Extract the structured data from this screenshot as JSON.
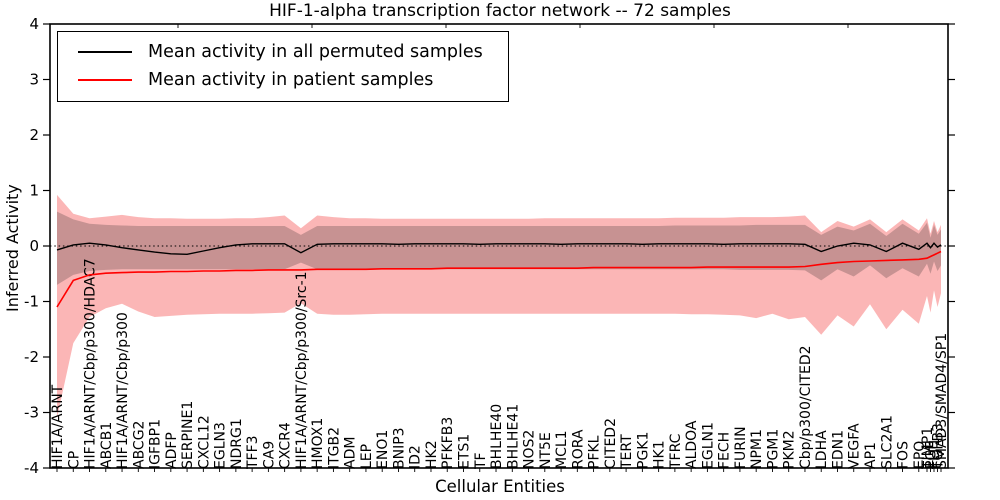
{
  "chart_data": {
    "type": "line",
    "title": "HIF-1-alpha transcription factor network -- 72 samples",
    "xlabel": "Cellular Entities",
    "ylabel": "Inferred Activity",
    "ylim": [
      -4,
      4
    ],
    "yticks": [
      "4",
      "3",
      "2",
      "1",
      "0",
      "-1",
      "-2",
      "-3",
      "-4"
    ],
    "ytick_values": [
      4,
      3,
      2,
      1,
      0,
      -1,
      -2,
      -3,
      -4
    ],
    "grid": false,
    "zero_line": {
      "style": "dotted",
      "color": "#000000",
      "y": 0
    },
    "legend": {
      "position": "upper left",
      "items": [
        {
          "label": "Mean activity in all permuted samples",
          "color": "#000000"
        },
        {
          "label": "Mean activity in patient samples",
          "color": "#ff0000"
        }
      ]
    },
    "categories": [
      "HIF1A/ARNT",
      "CP",
      "HIF1A/ARNT/Cbp/p300/HDAC7",
      "ABCB1",
      "HIF1A/ARNT/Cbp/p300",
      "ABCG2",
      "IGFBP1",
      "ADFP",
      "SERPINE1",
      "CXCL12",
      "EGLN3",
      "NDRG1",
      "TFF3",
      "CA9",
      "CXCR4",
      "HIF1A/ARNT/Cbp/p300/Src-1",
      "HMOX1",
      "ITGB2",
      "ADM",
      "LEP",
      "ENO1",
      "BNIP3",
      "ID2",
      "HK2",
      "PFKFB3",
      "ETS1",
      "TF",
      "BHLHE40",
      "BHLHE41",
      "NOS2",
      "NT5E",
      "MCL1",
      "RORA",
      "PFKL",
      "CITED2",
      "TERT",
      "PGK1",
      "HK1",
      "TFRC",
      "ALDOA",
      "EGLN1",
      "FECH",
      "FURIN",
      "NPM1",
      "PGM1",
      "PKM2",
      "Cbp/p300/CITED2",
      "LDHA",
      "EDN1",
      "VEGFA",
      "AP1",
      "SLC2A1",
      "FOS",
      "EPO"
    ],
    "cluster_categories": [
      "TIMP1",
      "PGF",
      "FLT1",
      "TGFB3",
      "SMAD3/SMAD4/SP1"
    ],
    "series": [
      {
        "name": "Mean activity in all permuted samples",
        "color": "#000000",
        "values": [
          -0.07,
          0.02,
          0.05,
          0.02,
          -0.03,
          -0.07,
          -0.11,
          -0.14,
          -0.15,
          -0.09,
          -0.03,
          0.02,
          0.04,
          0.04,
          0.04,
          -0.12,
          0.03,
          0.04,
          0.04,
          0.04,
          0.04,
          0.03,
          0.04,
          0.04,
          0.04,
          0.04,
          0.03,
          0.04,
          0.04,
          0.04,
          0.04,
          0.03,
          0.04,
          0.04,
          0.04,
          0.04,
          0.03,
          0.04,
          0.04,
          0.04,
          0.04,
          0.03,
          0.04,
          0.04,
          0.04,
          0.04,
          0.03,
          -0.1,
          0.0,
          0.05,
          0.02,
          -0.1,
          0.05,
          -0.06,
          0.05,
          -0.03,
          0.05,
          -0.02,
          0.02
        ]
      },
      {
        "name": "Mean activity in patient samples",
        "color": "#ff0000",
        "values": [
          -1.1,
          -0.62,
          -0.52,
          -0.49,
          -0.48,
          -0.47,
          -0.47,
          -0.46,
          -0.46,
          -0.45,
          -0.45,
          -0.44,
          -0.44,
          -0.43,
          -0.43,
          -0.43,
          -0.42,
          -0.42,
          -0.42,
          -0.42,
          -0.41,
          -0.41,
          -0.41,
          -0.41,
          -0.4,
          -0.4,
          -0.4,
          -0.4,
          -0.4,
          -0.4,
          -0.4,
          -0.4,
          -0.4,
          -0.39,
          -0.39,
          -0.39,
          -0.39,
          -0.39,
          -0.39,
          -0.39,
          -0.38,
          -0.38,
          -0.38,
          -0.38,
          -0.38,
          -0.38,
          -0.37,
          -0.33,
          -0.3,
          -0.28,
          -0.27,
          -0.26,
          -0.25,
          -0.24,
          -0.22,
          -0.19,
          -0.16,
          -0.13,
          -0.1
        ]
      }
    ],
    "bands": [
      {
        "name": "patient samples confidence band",
        "color": "#f98f8f",
        "opacity": 0.65,
        "top": [
          0.92,
          0.58,
          0.5,
          0.53,
          0.56,
          0.52,
          0.5,
          0.5,
          0.49,
          0.49,
          0.49,
          0.5,
          0.5,
          0.52,
          0.55,
          0.32,
          0.55,
          0.52,
          0.5,
          0.5,
          0.49,
          0.49,
          0.49,
          0.49,
          0.49,
          0.49,
          0.49,
          0.49,
          0.49,
          0.49,
          0.5,
          0.5,
          0.5,
          0.5,
          0.5,
          0.5,
          0.5,
          0.5,
          0.51,
          0.51,
          0.51,
          0.51,
          0.52,
          0.52,
          0.52,
          0.53,
          0.55,
          0.25,
          0.45,
          0.35,
          0.48,
          0.25,
          0.48,
          0.28,
          0.5,
          0.22,
          0.45,
          0.25,
          0.38
        ],
        "bottom": [
          -3.1,
          -1.75,
          -1.28,
          -1.12,
          -1.04,
          -1.18,
          -1.28,
          -1.26,
          -1.24,
          -1.23,
          -1.22,
          -1.22,
          -1.22,
          -1.21,
          -1.2,
          -1.03,
          -1.22,
          -1.24,
          -1.24,
          -1.23,
          -1.22,
          -1.22,
          -1.22,
          -1.22,
          -1.22,
          -1.22,
          -1.22,
          -1.22,
          -1.22,
          -1.22,
          -1.22,
          -1.22,
          -1.22,
          -1.22,
          -1.22,
          -1.22,
          -1.22,
          -1.22,
          -1.22,
          -1.23,
          -1.23,
          -1.24,
          -1.25,
          -1.3,
          -1.22,
          -1.32,
          -1.28,
          -1.6,
          -1.25,
          -1.45,
          -1.05,
          -1.5,
          -1.15,
          -1.4,
          -0.9,
          -1.2,
          -0.8,
          -1.1,
          -0.85
        ]
      },
      {
        "name": "permuted samples confidence band",
        "color": "#222222",
        "opacity": 0.24,
        "top": [
          0.62,
          0.48,
          0.4,
          0.38,
          0.37,
          0.36,
          0.36,
          0.36,
          0.36,
          0.36,
          0.36,
          0.36,
          0.36,
          0.36,
          0.36,
          0.2,
          0.36,
          0.36,
          0.36,
          0.36,
          0.36,
          0.36,
          0.36,
          0.36,
          0.36,
          0.36,
          0.36,
          0.36,
          0.36,
          0.36,
          0.36,
          0.36,
          0.36,
          0.36,
          0.36,
          0.36,
          0.36,
          0.36,
          0.37,
          0.37,
          0.37,
          0.37,
          0.37,
          0.38,
          0.38,
          0.38,
          0.38,
          0.2,
          0.35,
          0.28,
          0.4,
          0.18,
          0.4,
          0.22,
          0.42,
          0.15,
          0.38,
          0.2,
          0.3
        ],
        "bottom": [
          -0.7,
          -0.52,
          -0.45,
          -0.43,
          -0.42,
          -0.42,
          -0.42,
          -0.42,
          -0.42,
          -0.42,
          -0.42,
          -0.42,
          -0.42,
          -0.42,
          -0.42,
          -0.3,
          -0.42,
          -0.42,
          -0.42,
          -0.42,
          -0.42,
          -0.42,
          -0.42,
          -0.42,
          -0.42,
          -0.42,
          -0.42,
          -0.42,
          -0.42,
          -0.42,
          -0.42,
          -0.42,
          -0.42,
          -0.42,
          -0.42,
          -0.42,
          -0.42,
          -0.42,
          -0.42,
          -0.42,
          -0.42,
          -0.42,
          -0.43,
          -0.43,
          -0.43,
          -0.43,
          -0.44,
          -0.62,
          -0.42,
          -0.55,
          -0.35,
          -0.58,
          -0.4,
          -0.55,
          -0.32,
          -0.5,
          -0.28,
          -0.45,
          -0.35
        ]
      }
    ]
  }
}
